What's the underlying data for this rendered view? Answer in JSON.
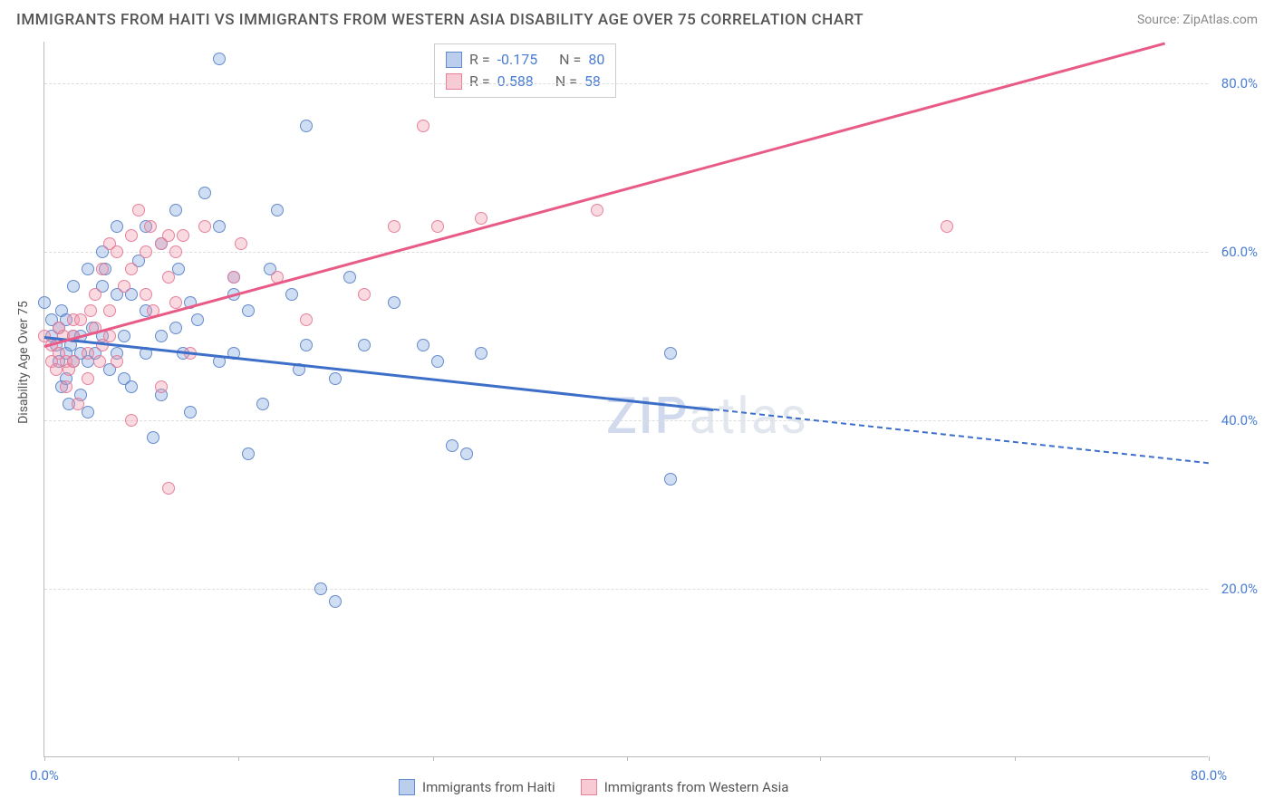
{
  "header": {
    "title": "IMMIGRANTS FROM HAITI VS IMMIGRANTS FROM WESTERN ASIA DISABILITY AGE OVER 75 CORRELATION CHART",
    "source": "Source: ZipAtlas.com"
  },
  "chart": {
    "type": "scatter",
    "y_axis_title": "Disability Age Over 75",
    "background_color": "#ffffff",
    "grid_color": "#dddddd",
    "axis_color": "#bbbbbb",
    "xlim": [
      0,
      80
    ],
    "ylim": [
      0,
      85
    ],
    "yticks": [
      20,
      40,
      60,
      80
    ],
    "ytick_labels": [
      "20.0%",
      "40.0%",
      "60.0%",
      "80.0%"
    ],
    "xticks": [
      0,
      13.3,
      26.7,
      40,
      53.3,
      66.7,
      80
    ],
    "xtick_labels_shown": {
      "0": "0.0%",
      "80": "80.0%"
    },
    "tick_label_color": "#4a7dd4",
    "tick_label_fontsize": 15,
    "watermark": "ZIPatlas",
    "point_radius": 7,
    "series": [
      {
        "name": "Immigrants from Haiti",
        "color_fill": "rgba(120,160,220,0.35)",
        "color_stroke": "rgba(90,130,200,0.9)",
        "trend_color": "#3d6fc9",
        "R": "-0.175",
        "N": "80",
        "trend": {
          "x1": 0,
          "y1": 50,
          "x2": 80,
          "y2": 35,
          "solid_until_x": 46
        },
        "points": [
          [
            0,
            54
          ],
          [
            0.5,
            52
          ],
          [
            0.5,
            50
          ],
          [
            0.8,
            49
          ],
          [
            1,
            47
          ],
          [
            1,
            51
          ],
          [
            1.2,
            44
          ],
          [
            1.2,
            53
          ],
          [
            1.5,
            48
          ],
          [
            1.5,
            52
          ],
          [
            1.5,
            45
          ],
          [
            1.7,
            42
          ],
          [
            1.8,
            49
          ],
          [
            2,
            56
          ],
          [
            2,
            50
          ],
          [
            2,
            47
          ],
          [
            2.5,
            50
          ],
          [
            2.5,
            43
          ],
          [
            2.5,
            48
          ],
          [
            3,
            41
          ],
          [
            3,
            58
          ],
          [
            3,
            47
          ],
          [
            3.3,
            51
          ],
          [
            3.5,
            48
          ],
          [
            4,
            56
          ],
          [
            4,
            60
          ],
          [
            4,
            50
          ],
          [
            4.2,
            58
          ],
          [
            4.5,
            46
          ],
          [
            5,
            48
          ],
          [
            5,
            55
          ],
          [
            5,
            63
          ],
          [
            5.5,
            50
          ],
          [
            5.5,
            45
          ],
          [
            6,
            44
          ],
          [
            6,
            55
          ],
          [
            6.5,
            59
          ],
          [
            7,
            48
          ],
          [
            7,
            63
          ],
          [
            7,
            53
          ],
          [
            7.5,
            38
          ],
          [
            8,
            43
          ],
          [
            8,
            50
          ],
          [
            8,
            61
          ],
          [
            9,
            51
          ],
          [
            9,
            65
          ],
          [
            9.2,
            58
          ],
          [
            9.5,
            48
          ],
          [
            10,
            41
          ],
          [
            10,
            54
          ],
          [
            10.5,
            52
          ],
          [
            11,
            67
          ],
          [
            12,
            47
          ],
          [
            12,
            63
          ],
          [
            12,
            83
          ],
          [
            13,
            48
          ],
          [
            13,
            57
          ],
          [
            13,
            55
          ],
          [
            14,
            53
          ],
          [
            14,
            36
          ],
          [
            15,
            42
          ],
          [
            15.5,
            58
          ],
          [
            16,
            65
          ],
          [
            17,
            55
          ],
          [
            17.5,
            46
          ],
          [
            18,
            49
          ],
          [
            18,
            75
          ],
          [
            19,
            20
          ],
          [
            20,
            18.5
          ],
          [
            20,
            45
          ],
          [
            21,
            57
          ],
          [
            22,
            49
          ],
          [
            24,
            54
          ],
          [
            26,
            49
          ],
          [
            27,
            47
          ],
          [
            28,
            37
          ],
          [
            29,
            36
          ],
          [
            30,
            48
          ],
          [
            43,
            33
          ],
          [
            43,
            48
          ]
        ]
      },
      {
        "name": "Immigrants from Western Asia",
        "color_fill": "rgba(240,150,170,0.35)",
        "color_stroke": "rgba(230,120,150,0.9)",
        "trend_color": "#e95b87",
        "R": "0.588",
        "N": "58",
        "trend": {
          "x1": 0,
          "y1": 49,
          "x2": 77,
          "y2": 85,
          "solid_until_x": 77
        },
        "points": [
          [
            0,
            50
          ],
          [
            0.5,
            49
          ],
          [
            0.5,
            47
          ],
          [
            0.8,
            46
          ],
          [
            1,
            51
          ],
          [
            1,
            48
          ],
          [
            1.3,
            50
          ],
          [
            1.5,
            44
          ],
          [
            1.5,
            47
          ],
          [
            1.7,
            46
          ],
          [
            2,
            52
          ],
          [
            2,
            50
          ],
          [
            2,
            47
          ],
          [
            2.3,
            42
          ],
          [
            2.5,
            52
          ],
          [
            3,
            45
          ],
          [
            3,
            48
          ],
          [
            3.2,
            53
          ],
          [
            3.5,
            55
          ],
          [
            3.5,
            51
          ],
          [
            3.8,
            47
          ],
          [
            4,
            58
          ],
          [
            4,
            49
          ],
          [
            4.5,
            53
          ],
          [
            4.5,
            50
          ],
          [
            4.5,
            61
          ],
          [
            5,
            47
          ],
          [
            5,
            60
          ],
          [
            5.5,
            56
          ],
          [
            6,
            62
          ],
          [
            6,
            58
          ],
          [
            6,
            40
          ],
          [
            6.5,
            65
          ],
          [
            7,
            55
          ],
          [
            7,
            60
          ],
          [
            7.3,
            63
          ],
          [
            7.5,
            53
          ],
          [
            8,
            44
          ],
          [
            8,
            61
          ],
          [
            8.5,
            57
          ],
          [
            8.5,
            62
          ],
          [
            8.5,
            32
          ],
          [
            9,
            60
          ],
          [
            9,
            54
          ],
          [
            9.5,
            62
          ],
          [
            10,
            48
          ],
          [
            11,
            63
          ],
          [
            13,
            57
          ],
          [
            13.5,
            61
          ],
          [
            16,
            57
          ],
          [
            18,
            52
          ],
          [
            22,
            55
          ],
          [
            24,
            63
          ],
          [
            26,
            75
          ],
          [
            27,
            63
          ],
          [
            30,
            64
          ],
          [
            38,
            65
          ],
          [
            62,
            63
          ]
        ]
      }
    ],
    "stats_box": {
      "rows": [
        {
          "swatch": "blue",
          "R_label": "R =",
          "R_val": "-0.175",
          "N_label": "N =",
          "N_val": "80"
        },
        {
          "swatch": "pink",
          "R_label": "R =",
          "R_val": "0.588",
          "N_label": "N =",
          "N_val": "58"
        }
      ]
    },
    "legend": [
      {
        "swatch": "blue",
        "label": "Immigrants from Haiti"
      },
      {
        "swatch": "pink",
        "label": "Immigrants from Western Asia"
      }
    ]
  }
}
